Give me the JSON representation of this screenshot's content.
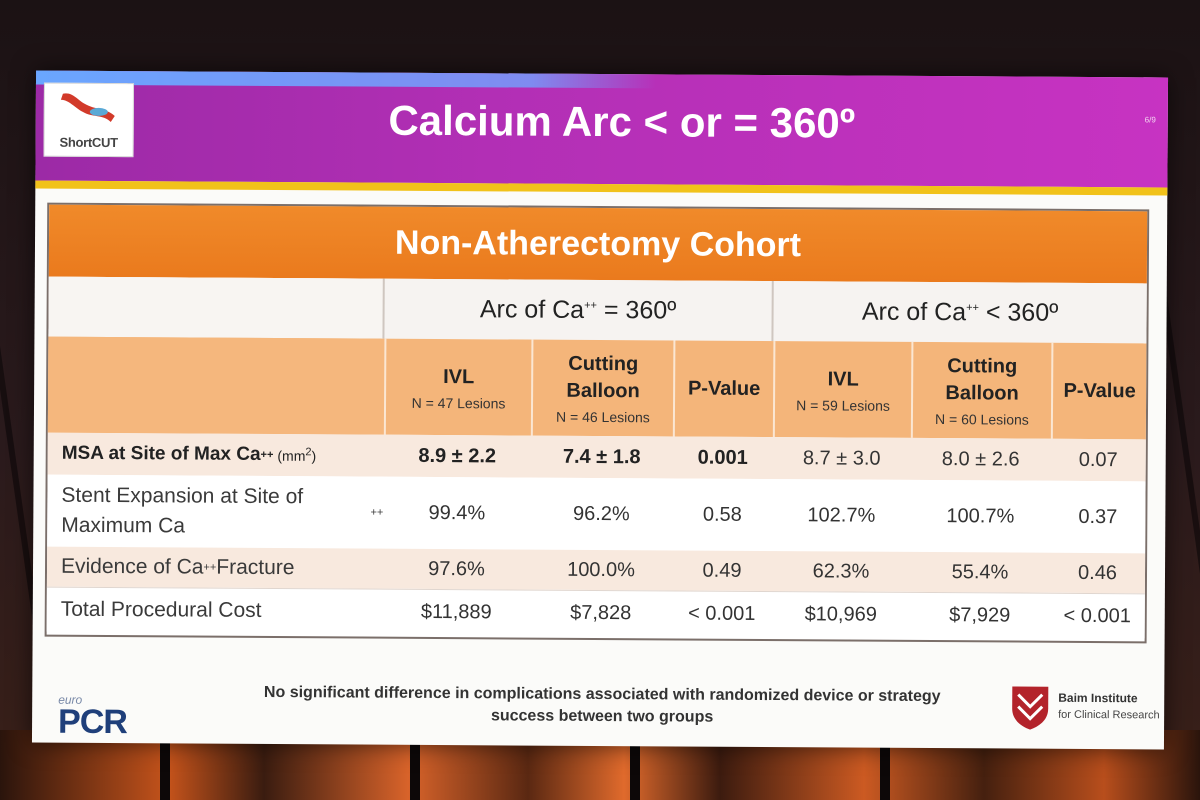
{
  "slide": {
    "logo_text": "ShortCUT",
    "title": "Calcium Arc < or = 360º",
    "slide_number": "6/9"
  },
  "table": {
    "cohort_title": "Non-Atherectomy Cohort",
    "group_headers": [
      "Arc of Ca++ = 360º",
      "Arc of Ca++ < 360º"
    ],
    "columns": [
      {
        "label": "IVL",
        "sub": "N = 47 Lesions"
      },
      {
        "label": "Cutting Balloon",
        "sub": "N = 46 Lesions"
      },
      {
        "label": "P-Value",
        "sub": ""
      },
      {
        "label": "IVL",
        "sub": "N = 59 Lesions"
      },
      {
        "label": "Cutting Balloon",
        "sub": "N = 60 Lesions"
      },
      {
        "label": "P-Value",
        "sub": ""
      }
    ],
    "rows": [
      {
        "label": "MSA at Site of Max Ca++ (mm2)",
        "values": [
          "8.9 ± 2.2",
          "7.4 ± 1.8",
          "0.001",
          "8.7 ± 3.0",
          "8.0 ± 2.6",
          "0.07"
        ]
      },
      {
        "label": "Stent Expansion at Site of Maximum Ca++",
        "values": [
          "99.4%",
          "96.2%",
          "0.58",
          "102.7%",
          "100.7%",
          "0.37"
        ]
      },
      {
        "label": "Evidence of Ca++ Fracture",
        "values": [
          "97.6%",
          "100.0%",
          "0.49",
          "62.3%",
          "55.4%",
          "0.46"
        ]
      },
      {
        "label": "Total Procedural Cost",
        "values": [
          "$11,889",
          "$7,828",
          "< 0.001",
          "$10,969",
          "$7,929",
          "< 0.001"
        ]
      }
    ]
  },
  "footer": {
    "note": "No significant difference in complications associated with randomized device or strategy success between two groups",
    "euro": "euro",
    "pcr": "PCR",
    "institute_name": "Baim Institute",
    "institute_sub": "for Clinical Research"
  },
  "colors": {
    "header_magenta": "#b22fb5",
    "accent_yellow": "#f1c21a",
    "cohort_orange": "#ea7a1d",
    "column_header_orange": "#f4b57a",
    "row_stripe": "#f8e9de"
  }
}
